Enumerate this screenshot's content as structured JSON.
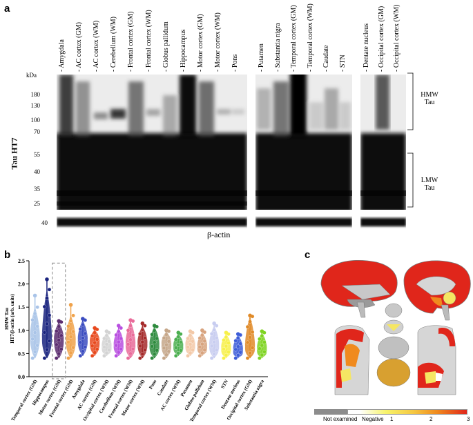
{
  "panels": {
    "a": "a",
    "b": "b",
    "c": "c"
  },
  "panel_a": {
    "kda_label": "kDa",
    "y_axis_label": "Tau HT7",
    "markers": [
      "180",
      "130",
      "100",
      "70",
      "55",
      "40",
      "35",
      "25"
    ],
    "actin_marker": "40",
    "actin_label": "β-actin",
    "hmw_label": [
      "HMW",
      "Tau"
    ],
    "lmw_label": [
      "LMW",
      "Tau"
    ],
    "group1_lanes": [
      "Amygdala",
      "AC cortex (GM)",
      "AC cortex (WM)",
      "Cerebellum (WM)",
      "Frontal cortex (GM)",
      "Frontal cortex (WM)",
      "Globus pallidum",
      "Hippocampus",
      "Motor cortex (GM)",
      "Motor cortex (WM)",
      "Pons"
    ],
    "group2_lanes": [
      "Putamen",
      "Substantia nigra",
      "Temporal cortex (GM)",
      "Temporal cortex (WM)",
      "Caudate",
      "STN"
    ],
    "group3_lanes": [
      "Dentate nucleus",
      "Occipital cortex (GM)",
      "Occipital cortex (WM)"
    ]
  },
  "chart_data": {
    "type": "violin",
    "ylabel_lines": [
      "HMW Tau",
      "HT7/β-actin (arb. units)"
    ],
    "ylim": [
      0,
      2.5
    ],
    "yticks": [
      "0.0",
      "0.5",
      "1.0",
      "1.5",
      "2.0",
      "2.5"
    ],
    "categories": [
      "Temporal cortex (GM)",
      "Hippocampus",
      "Motor cortex (GM)",
      "Frontal cortex (GM)",
      "Amygdala",
      "AC cortex (GM)",
      "Occipital cortex (WM)",
      "Cerebellum (WM)",
      "Frontal cortex (WM)",
      "Motor cortex (WM)",
      "Pons",
      "Caudate",
      "AC cortex (WM)",
      "Putamen",
      "Globus pallidum",
      "Temporal cortex (WM)",
      "STN",
      "Dentate nucleus",
      "Occipital cortex (GM)",
      "Substantia nigra"
    ],
    "colors": [
      "#a9c4e8",
      "#1a237e",
      "#5b2c6f",
      "#f0a24a",
      "#3b4cc0",
      "#e8491d",
      "#d3d3d3",
      "#b84fe0",
      "#e96b9a",
      "#a52a2a",
      "#2e8b3e",
      "#c6a78a",
      "#4caf50",
      "#f3c9a8",
      "#d8a47f",
      "#c8cdf0",
      "#f7f04a",
      "#3d5dd8",
      "#e08a28",
      "#7ed321"
    ],
    "medians": [
      0.85,
      0.82,
      0.8,
      0.78,
      0.8,
      0.75,
      0.65,
      0.68,
      0.7,
      0.72,
      0.68,
      0.7,
      0.66,
      0.68,
      0.65,
      0.68,
      0.62,
      0.58,
      0.65,
      0.6
    ],
    "mins": [
      0.4,
      0.4,
      0.4,
      0.4,
      0.45,
      0.45,
      0.45,
      0.45,
      0.4,
      0.4,
      0.4,
      0.4,
      0.45,
      0.45,
      0.45,
      0.4,
      0.4,
      0.4,
      0.4,
      0.4
    ],
    "maxs": [
      1.5,
      1.88,
      1.18,
      1.32,
      1.22,
      1.02,
      0.95,
      1.05,
      1.2,
      1.1,
      1.08,
      0.98,
      0.92,
      0.95,
      0.96,
      1.1,
      0.92,
      0.9,
      1.3,
      0.95
    ],
    "whisker_max": [
      1.75,
      2.1,
      1.2,
      1.55,
      1.25,
      1.05,
      0.98,
      1.1,
      1.22,
      1.15,
      1.1,
      1.0,
      0.95,
      0.98,
      1.0,
      1.15,
      0.95,
      0.92,
      1.32,
      0.98
    ],
    "highlighted_category": "Motor cortex (GM)"
  },
  "panel_c": {
    "colorbar_labels": [
      "Not examined",
      "Negative",
      "1",
      "2",
      "3"
    ],
    "colorbar_colors": [
      "#8c8c8c",
      "#ffffff",
      "#f5e663",
      "#f08a1e",
      "#e0261b"
    ]
  }
}
